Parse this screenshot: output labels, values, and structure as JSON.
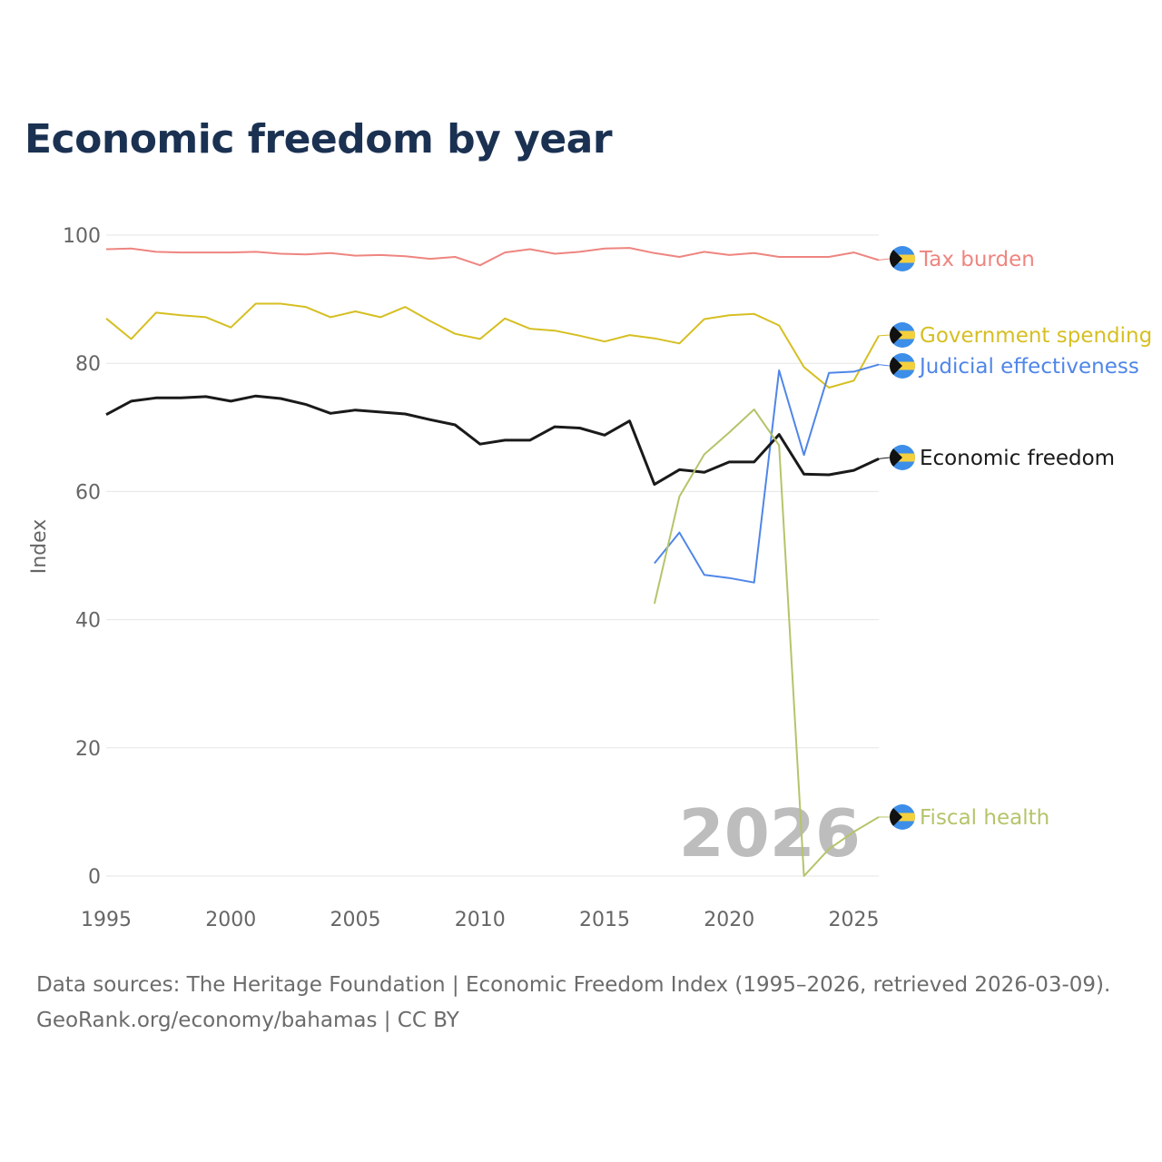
{
  "title": "Economic freedom by year",
  "source_line1": "Data sources: The Heritage Foundation | Economic Freedom Index (1995–2026, retrieved 2026-03-09).",
  "source_line2": "GeoRank.org/economy/bahamas | CC BY",
  "watermark_year": "2026",
  "flag_icon": "bahamas-flag-icon",
  "chart_data": {
    "type": "line",
    "title": "Economic freedom by year",
    "xlabel": "",
    "ylabel": "Index",
    "xlim": [
      1995,
      2026
    ],
    "ylim": [
      0,
      100
    ],
    "xticks": [
      1995,
      2000,
      2005,
      2010,
      2015,
      2020,
      2025
    ],
    "yticks": [
      0,
      20,
      40,
      60,
      80,
      100
    ],
    "grid": true,
    "legend": "right-end labels",
    "series": [
      {
        "name": "Tax burden",
        "color": "#ee8580",
        "width": 2,
        "start": 1995,
        "values": [
          97.8,
          97.9,
          97.4,
          97.3,
          97.3,
          97.3,
          97.4,
          97.1,
          97.0,
          97.2,
          96.8,
          96.9,
          96.7,
          96.3,
          96.6,
          95.3,
          97.3,
          97.8,
          97.1,
          97.4,
          97.9,
          98.0,
          97.2,
          96.6,
          97.4,
          96.9,
          97.2,
          96.6,
          96.6,
          96.6,
          97.3,
          96.1
        ]
      },
      {
        "name": "Government spending",
        "color": "#d6bf22",
        "width": 2,
        "start": 1995,
        "values": [
          87.0,
          83.8,
          87.9,
          87.5,
          87.2,
          85.6,
          89.3,
          89.3,
          88.8,
          87.2,
          88.1,
          87.2,
          88.8,
          86.6,
          84.6,
          83.8,
          87.0,
          85.4,
          85.1,
          84.3,
          83.4,
          84.4,
          83.9,
          83.1,
          86.9,
          87.5,
          87.7,
          85.9,
          79.4,
          76.2,
          77.3,
          84.3
        ]
      },
      {
        "name": "Judicial effectiveness",
        "color": "#4f86e8",
        "width": 2,
        "start": 2017,
        "values": [
          48.8,
          53.6,
          47.0,
          46.5,
          45.8,
          78.9,
          65.7,
          78.5,
          78.7,
          79.8
        ]
      },
      {
        "name": "Economic freedom",
        "color": "#1a1a1a",
        "width": 3,
        "start": 1995,
        "values": [
          72.0,
          74.1,
          74.6,
          74.6,
          74.8,
          74.1,
          74.9,
          74.5,
          73.6,
          72.2,
          72.7,
          72.4,
          72.1,
          71.2,
          70.4,
          67.4,
          68.0,
          68.0,
          70.1,
          69.9,
          68.8,
          71.0,
          61.1,
          63.4,
          63.0,
          64.6,
          64.6,
          68.9,
          62.7,
          62.6,
          63.3,
          65.1
        ]
      },
      {
        "name": "Fiscal health",
        "color": "#b5c46a",
        "width": 2,
        "start": 2017,
        "values": [
          42.5,
          59.2,
          65.8,
          69.2,
          72.8,
          67.2,
          0.0,
          4.2,
          6.9,
          9.2
        ]
      }
    ],
    "label_order": [
      "Tax burden",
      "Government spending",
      "Judicial effectiveness",
      "Economic freedom",
      "Fiscal health"
    ]
  }
}
